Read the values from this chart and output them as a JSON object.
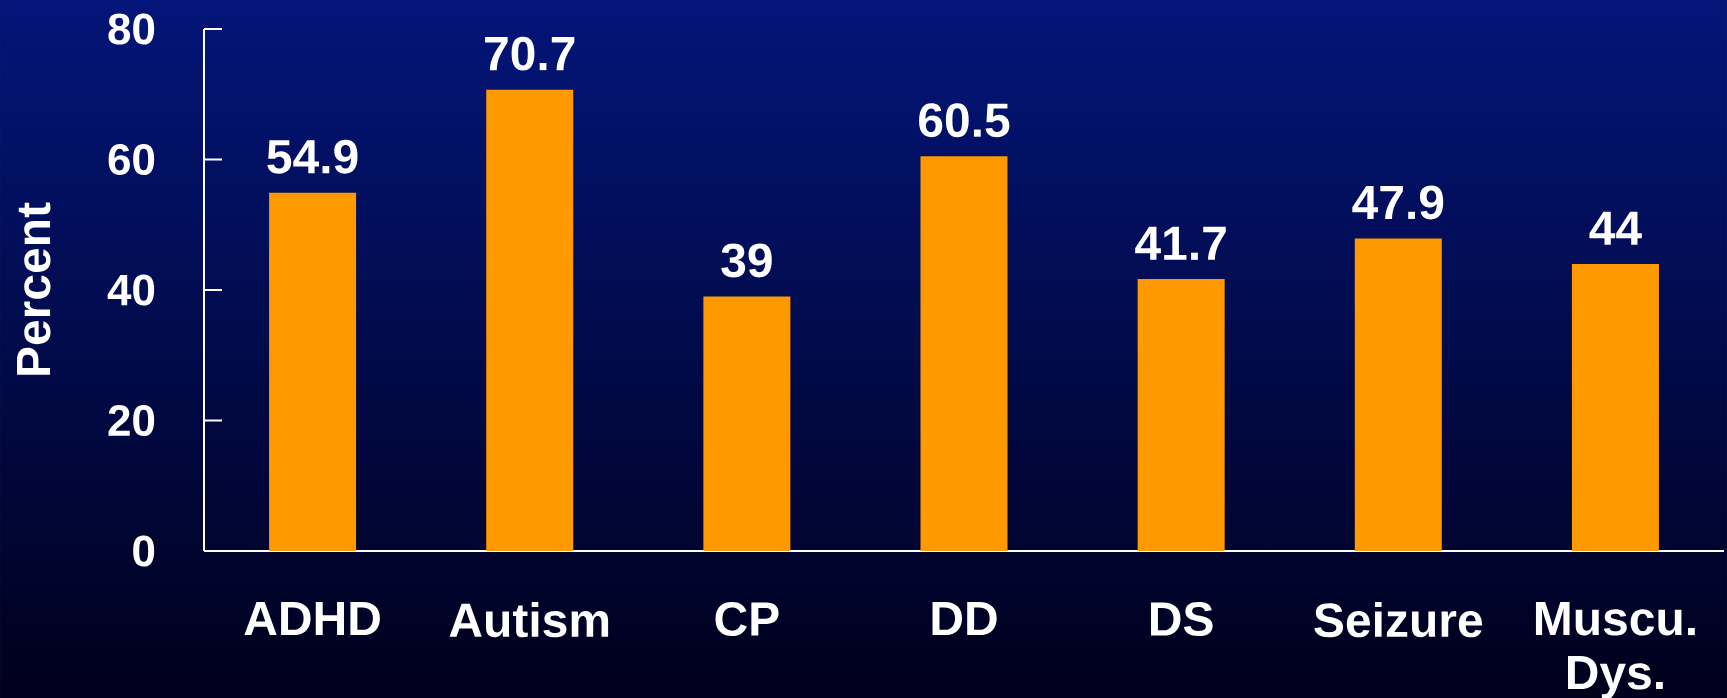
{
  "chart_data": {
    "type": "bar",
    "ylabel": "Percent",
    "categories": [
      "ADHD",
      "Autism",
      "CP",
      "DD",
      "DS",
      "Seizure",
      "Muscu. Dys."
    ],
    "values": [
      54.9,
      70.7,
      39,
      60.5,
      41.7,
      47.9,
      44
    ],
    "color": "#ff9900",
    "ylim": [
      0,
      80
    ],
    "yticks": [
      0,
      20,
      40,
      60,
      80
    ],
    "data_labels": true
  }
}
